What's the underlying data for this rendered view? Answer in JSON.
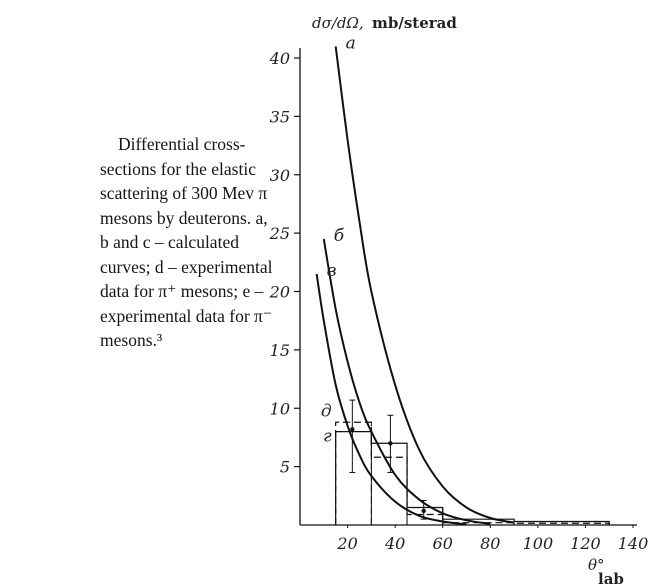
{
  "caption": {
    "text": "Differential cross-sections for the elastic scattering of 300 Mev π mesons by deuterons. a, b and c – calculated curves; d – experimental data for π⁺ mesons; e – experimental data for π⁻ mesons.³"
  },
  "chart_data": {
    "type": "line",
    "title": "",
    "ylabel_italic": "dσ/dΩ,",
    "ylabel_units": "mb/sterad",
    "xlabel_base": "θ°",
    "xlabel_sub": "lab",
    "xlim": [
      0,
      140
    ],
    "ylim": [
      0,
      40
    ],
    "x_ticks": [
      20,
      40,
      60,
      80,
      100,
      120,
      140
    ],
    "y_ticks": [
      5,
      10,
      15,
      20,
      25,
      30,
      35,
      40
    ],
    "grid": false,
    "series": [
      {
        "name": "а",
        "x": [
          15,
          20,
          25,
          30,
          40,
          50,
          60,
          70,
          80,
          90
        ],
        "y": [
          41,
          33,
          26,
          20,
          12,
          6.5,
          3.3,
          1.5,
          0.6,
          0.2
        ]
      },
      {
        "name": "б",
        "x": [
          10,
          15,
          20,
          25,
          30,
          40,
          50,
          60,
          70,
          80
        ],
        "y": [
          24.5,
          18.5,
          14,
          10.5,
          8,
          4.3,
          2.2,
          1,
          0.4,
          0.1
        ]
      },
      {
        "name": "в",
        "x": [
          7,
          10,
          15,
          20,
          25,
          30,
          40,
          50,
          60,
          70
        ],
        "y": [
          21.5,
          17.5,
          12,
          8.5,
          6,
          4.2,
          2,
          0.8,
          0.3,
          0.05
        ]
      }
    ],
    "histograms": [
      {
        "name": "д",
        "style": "dashed",
        "bins": [
          {
            "x0": 15,
            "x1": 30,
            "y": 8.8
          },
          {
            "x0": 30,
            "x1": 45,
            "y": 5.8
          },
          {
            "x0": 45,
            "x1": 60,
            "y": 0.9
          },
          {
            "x0": 60,
            "x1": 90,
            "y": 0.2
          },
          {
            "x0": 90,
            "x1": 130,
            "y": 0.15
          }
        ]
      },
      {
        "name": "г",
        "style": "solid",
        "bins": [
          {
            "x0": 15,
            "x1": 30,
            "y": 8
          },
          {
            "x0": 30,
            "x1": 45,
            "y": 7
          },
          {
            "x0": 45,
            "x1": 60,
            "y": 1.5
          },
          {
            "x0": 60,
            "x1": 90,
            "y": 0.5
          },
          {
            "x0": 90,
            "x1": 130,
            "y": 0.3
          }
        ]
      }
    ],
    "error_bars": [
      {
        "x": 22,
        "y": 8.2,
        "low": 4.5,
        "high": 10.7
      },
      {
        "x": 38,
        "y": 7,
        "low": 4.5,
        "high": 9.4
      },
      {
        "x": 52,
        "y": 1.2,
        "low": 0.5,
        "high": 2.1
      }
    ]
  }
}
